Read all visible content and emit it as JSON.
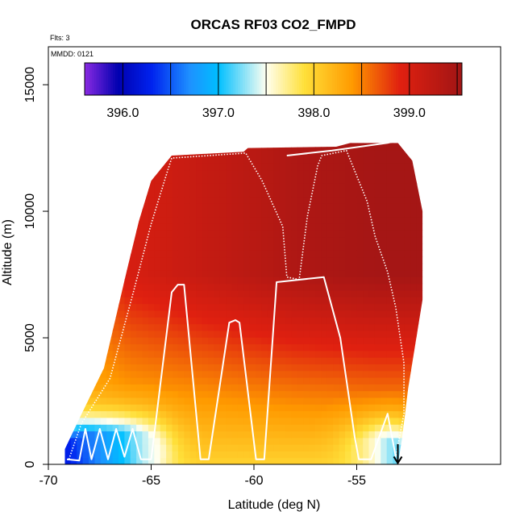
{
  "chart_data": {
    "type": "heatmap",
    "title": "ORCAS RF03 CO2_FMPD",
    "subtitle_lines": [
      "Flts: 3",
      "MMDD: 0121"
    ],
    "xlabel": "Latitude (deg N)",
    "ylabel": "Altitude (m)",
    "xlim": [
      -70,
      -48
    ],
    "ylim": [
      0,
      16500
    ],
    "x_ticks": [
      -70,
      -65,
      -60,
      -55
    ],
    "x_tick_labels": [
      "-70",
      "-65",
      "-60",
      "-55"
    ],
    "y_ticks": [
      0,
      5000,
      10000,
      15000
    ],
    "y_tick_labels": [
      "0",
      "5000",
      "10000",
      "15000"
    ],
    "colorbar": {
      "range": [
        395.6,
        399.55
      ],
      "ticks": [
        396.0,
        397.0,
        398.0,
        399.0
      ],
      "tick_labels": [
        "396.0",
        "397.0",
        "398.0",
        "399.0"
      ],
      "placement": "top-inside",
      "stops": [
        {
          "value": 395.6,
          "color": "#8a2be2"
        },
        {
          "value": 395.95,
          "color": "#0000b0"
        },
        {
          "value": 396.3,
          "color": "#0022ee"
        },
        {
          "value": 396.7,
          "color": "#1e90ff"
        },
        {
          "value": 397.0,
          "color": "#00bfff"
        },
        {
          "value": 397.5,
          "color": "#fffff0"
        },
        {
          "value": 397.9,
          "color": "#ffe03a"
        },
        {
          "value": 398.4,
          "color": "#ff9a00"
        },
        {
          "value": 398.9,
          "color": "#e02010"
        },
        {
          "value": 399.55,
          "color": "#a01515"
        }
      ]
    },
    "field": {
      "lat_range": [
        -69.2,
        -51.8
      ],
      "alt_range": [
        0,
        12700
      ],
      "upper_edge": [
        [
          -69.2,
          600
        ],
        [
          -68.5,
          1800
        ],
        [
          -67.3,
          3800
        ],
        [
          -66.2,
          7600
        ],
        [
          -65.6,
          9600
        ],
        [
          -65.0,
          11200
        ],
        [
          -64.0,
          12200
        ],
        [
          -60.5,
          12350
        ],
        [
          -60.3,
          12500
        ],
        [
          -56.0,
          12550
        ],
        [
          -55.3,
          12700
        ],
        [
          -53.0,
          12700
        ],
        [
          -52.3,
          12000
        ],
        [
          -51.8,
          10000
        ],
        [
          -51.8,
          6500
        ],
        [
          -52.5,
          3000
        ],
        [
          -52.8,
          1000
        ],
        [
          -53.0,
          0
        ]
      ],
      "low_band_anchors": [
        {
          "lat": -69.2,
          "alt": 0,
          "value": 396.0
        },
        {
          "lat": -68.0,
          "alt": 300,
          "value": 396.7
        },
        {
          "lat": -66.5,
          "alt": 400,
          "value": 396.9
        },
        {
          "lat": -65.0,
          "alt": 500,
          "value": 397.6
        },
        {
          "lat": -53.2,
          "alt": 300,
          "value": 397.1
        },
        {
          "lat": -54.8,
          "alt": 300,
          "value": 397.9
        }
      ],
      "upper_values_by_lat": [
        [
          -69,
          398.6
        ],
        [
          -66,
          399.0
        ],
        [
          -62,
          399.2
        ],
        [
          -58,
          399.4
        ],
        [
          -54,
          399.5
        ],
        [
          -52,
          399.5
        ]
      ]
    },
    "flight_track": [
      [
        -69.1,
        200
      ],
      [
        -68.5,
        150
      ],
      [
        -68.2,
        1400
      ],
      [
        -67.9,
        200
      ],
      [
        -67.5,
        1400
      ],
      [
        -67.1,
        200
      ],
      [
        -66.7,
        1400
      ],
      [
        -66.3,
        300
      ],
      [
        -65.9,
        1400
      ],
      [
        -65.5,
        200
      ],
      [
        -65.0,
        200
      ],
      [
        -64.0,
        6800
      ],
      [
        -63.7,
        7100
      ],
      [
        -63.4,
        7100
      ],
      [
        -62.6,
        200
      ],
      [
        -62.2,
        200
      ],
      [
        -61.2,
        5600
      ],
      [
        -60.9,
        5700
      ],
      [
        -60.7,
        5600
      ],
      [
        -59.9,
        200
      ],
      [
        -59.5,
        200
      ],
      [
        -58.9,
        7200
      ],
      [
        -56.6,
        7400
      ],
      [
        -55.8,
        5000
      ],
      [
        -55.1,
        1100
      ],
      [
        -54.9,
        200
      ],
      [
        -54.3,
        200
      ],
      [
        -53.5,
        2000
      ],
      [
        -53.1,
        300
      ]
    ],
    "flight_track_upper": [
      [
        -69.0,
        200
      ],
      [
        -68.4,
        1600
      ],
      [
        -67.0,
        3400
      ],
      [
        -65.8,
        7000
      ],
      [
        -65.0,
        9500
      ],
      [
        -64.2,
        11600
      ],
      [
        -64.0,
        12100
      ],
      [
        -60.4,
        12300
      ],
      [
        -59.6,
        11200
      ],
      [
        -58.6,
        9400
      ],
      [
        -58.4,
        7400
      ],
      [
        -57.8,
        7300
      ],
      [
        -57.4,
        9800
      ],
      [
        -56.9,
        11800
      ],
      [
        -56.7,
        12200
      ],
      [
        -55.5,
        12400
      ],
      [
        -55.0,
        11400
      ],
      [
        -54.5,
        10400
      ],
      [
        -54.1,
        9000
      ],
      [
        -53.5,
        7600
      ],
      [
        -53.1,
        6200
      ],
      [
        -52.7,
        4000
      ],
      [
        -52.7,
        2000
      ],
      [
        -53.1,
        300
      ]
    ],
    "flight_track_top": [
      [
        -58.4,
        12200
      ],
      [
        -56.2,
        12400
      ],
      [
        -53.5,
        12700
      ],
      [
        -53.0,
        12800
      ]
    ],
    "arrow": {
      "lat": -53.0,
      "alt_from": 800,
      "alt_to": 50
    }
  }
}
